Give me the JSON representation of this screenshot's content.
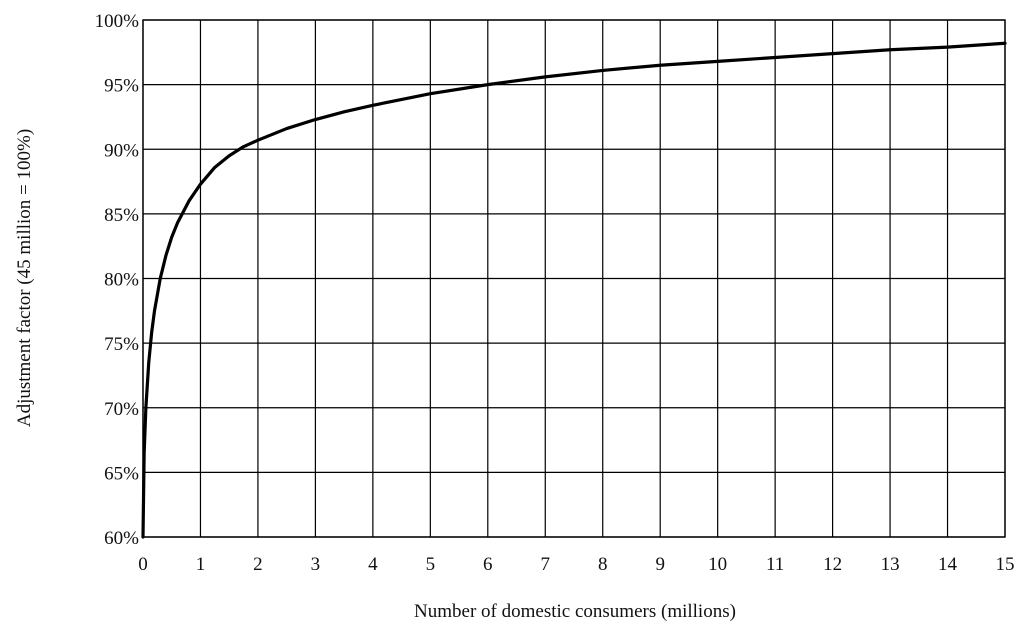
{
  "chart_data": {
    "type": "line",
    "title": "",
    "xlabel": "Number of domestic consumers (millions)",
    "ylabel": "Adjustment factor (45 million = 100%)",
    "xlim": [
      0,
      15
    ],
    "ylim": [
      60,
      100
    ],
    "x_ticks": [
      0,
      1,
      2,
      3,
      4,
      5,
      6,
      7,
      8,
      9,
      10,
      11,
      12,
      13,
      14,
      15
    ],
    "x_tick_labels": [
      "0",
      "1",
      "2",
      "3",
      "4",
      "5",
      "6",
      "7",
      "8",
      "9",
      "10",
      "11",
      "12",
      "13",
      "14",
      "15"
    ],
    "y_ticks": [
      60,
      65,
      70,
      75,
      80,
      85,
      90,
      95,
      100
    ],
    "y_tick_labels": [
      "60%",
      "65%",
      "70%",
      "75%",
      "80%",
      "85%",
      "90%",
      "95%",
      "100%"
    ],
    "grid": true,
    "legend": "none",
    "line_color": "#000000",
    "series": [
      {
        "x": [
          0,
          0.02,
          0.05,
          0.1,
          0.15,
          0.2,
          0.3,
          0.4,
          0.5,
          0.6,
          0.8,
          1,
          1.25,
          1.5,
          1.75,
          2,
          2.5,
          3,
          3.5,
          4,
          5,
          6,
          7,
          8,
          9,
          10,
          11,
          12,
          13,
          14,
          15
        ],
        "values": [
          60,
          66.5,
          70,
          73.5,
          75.8,
          77.5,
          80,
          81.8,
          83.2,
          84.3,
          86,
          87.3,
          88.6,
          89.5,
          90.2,
          90.7,
          91.6,
          92.3,
          92.9,
          93.4,
          94.3,
          95,
          95.6,
          96.1,
          96.5,
          96.8,
          97.1,
          97.4,
          97.7,
          97.9,
          98.2
        ]
      }
    ]
  }
}
